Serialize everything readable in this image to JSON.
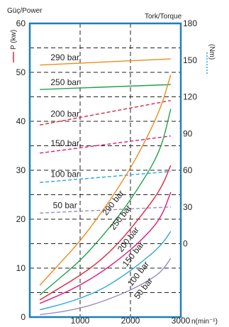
{
  "chart_data": {
    "type": "line",
    "left_axis_title": "Güç/Power",
    "left_axis_label": "P (kw)",
    "right_axis_title": "Tork/Torque",
    "right_axis_label": "(Nm)",
    "x_unit_label": "n(min⁻¹)",
    "x_ticks": [
      "1000",
      "2000",
      "3000"
    ],
    "y_ticks": [
      "0",
      "10",
      "20",
      "30",
      "40",
      "50",
      "60"
    ],
    "torque_ticks": [
      "0",
      "30",
      "60",
      "90",
      "120",
      "150",
      "180"
    ],
    "xlim": [
      0,
      3000
    ],
    "ylim_power": [
      0,
      60
    ],
    "ylim_torque": [
      -60,
      180
    ],
    "grid": "dashed",
    "torque_series": [
      {
        "name": "290 bar",
        "color": "#f08a1c",
        "style": "solid",
        "x": [
          200,
          2800
        ],
        "y": [
          146,
          151
        ]
      },
      {
        "name": "250 bar",
        "color": "#22a24a",
        "style": "solid",
        "x": [
          200,
          2800
        ],
        "y": [
          126,
          130
        ]
      },
      {
        "name": "200 bar",
        "color": "#e2233a",
        "style": "dashed",
        "x": [
          200,
          2800
        ],
        "y": [
          97,
          117
        ]
      },
      {
        "name": "150 bar",
        "color": "#e0197e",
        "style": "dashed",
        "x": [
          200,
          2800
        ],
        "y": [
          74,
          88
        ]
      },
      {
        "name": "100 bar",
        "color": "#27a6d8",
        "style": "dashed",
        "x": [
          200,
          2800
        ],
        "y": [
          50,
          59
        ]
      },
      {
        "name": "50 bar",
        "color": "#9a8dc6",
        "style": "dashed",
        "x": [
          200,
          2800
        ],
        "y": [
          25,
          30
        ]
      }
    ],
    "power_series": [
      {
        "name": "290 bar",
        "color": "#f08a1c",
        "x": [
          200,
          600,
          1000,
          1400,
          1800,
          2200,
          2600,
          2800
        ],
        "y": [
          6.5,
          11,
          15.5,
          21,
          27,
          34,
          42.5,
          49.5
        ]
      },
      {
        "name": "250 bar",
        "color": "#22a24a",
        "x": [
          200,
          600,
          1000,
          1400,
          1800,
          2200,
          2600,
          2800
        ],
        "y": [
          4.5,
          8,
          11.5,
          16,
          21,
          27,
          34,
          42.5
        ]
      },
      {
        "name": "200 bar",
        "color": "#e2233a",
        "x": [
          200,
          600,
          1000,
          1400,
          1800,
          2200,
          2600,
          2800
        ],
        "y": [
          3.5,
          6,
          8.5,
          11.5,
          15.5,
          20.5,
          26,
          31
        ]
      },
      {
        "name": "150 bar",
        "color": "#e0197e",
        "x": [
          200,
          600,
          1000,
          1400,
          1800,
          2200,
          2600,
          2800
        ],
        "y": [
          2.8,
          4.5,
          6.5,
          9,
          12,
          15.5,
          20,
          25.5
        ]
      },
      {
        "name": "100 bar",
        "color": "#27a6d8",
        "x": [
          200,
          600,
          1000,
          1400,
          1800,
          2200,
          2600,
          2800
        ],
        "y": [
          1.5,
          2.5,
          3.8,
          5.5,
          8,
          11,
          14.5,
          17.5
        ]
      },
      {
        "name": "50 bar",
        "color": "#9a8dc6",
        "x": [
          200,
          600,
          1000,
          1400,
          1800,
          2200,
          2600,
          2800
        ],
        "y": [
          0.5,
          1,
          1.8,
          3,
          4.6,
          6.5,
          9,
          12
        ]
      }
    ],
    "colors": {
      "axis": "#1e7fb8",
      "grid": "#222222",
      "power_marker": "#e2233a",
      "torque_marker": "#27a6d8"
    }
  }
}
